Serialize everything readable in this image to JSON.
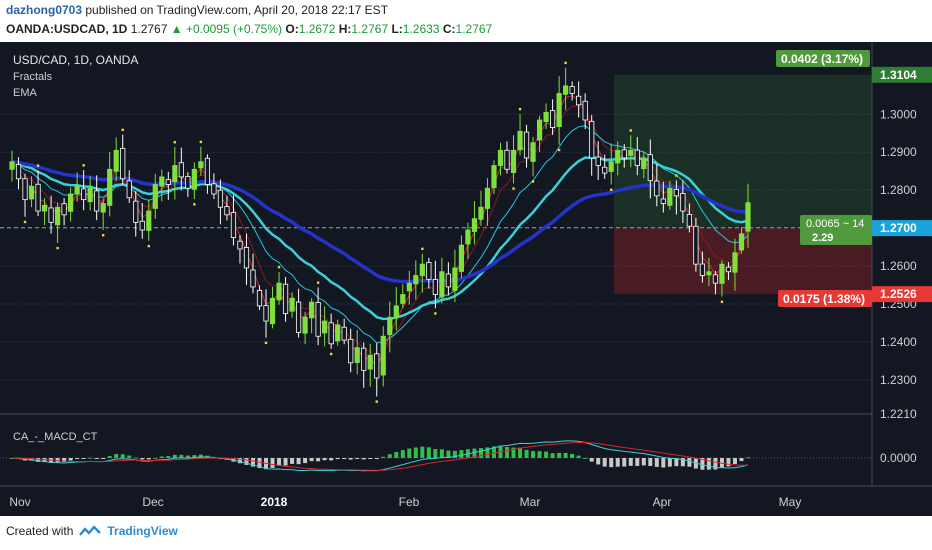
{
  "header": {
    "author": "dazhong0703",
    "published": "published on TradingView.com, April 20, 2018 22:17 EST",
    "symbol": "OANDA:USDCAD, 1D",
    "last": "1.2767",
    "change": "▲ +0.0095 (+0.75%)",
    "o_label": "O:",
    "o": "1.2672",
    "h_label": "H:",
    "h": "1.2767",
    "l_label": "L:",
    "l": "1.2633",
    "c_label": "C:",
    "c": "1.2767"
  },
  "legend": {
    "title": "USD/CAD, 1D, OANDA",
    "ind1": "Fractals",
    "ind2": "EMA",
    "macd": "CA_-_MACD_CT"
  },
  "footer": {
    "created": "Created with",
    "brand": "TradingView"
  },
  "colors": {
    "bg": "#131722",
    "bull": "#7fe03c",
    "bear": "#ffffff",
    "ema_red": "#d62728",
    "ema_dark": "#8b1a1a",
    "ema_cyan_thin": "#26c6da",
    "ema_cyan": "#3ad1d8",
    "ema_blue": "#2433c9",
    "fractal": "#f5d33a",
    "profit": "#2e7d32",
    "loss": "#c62828"
  },
  "chart_data": {
    "type": "candlestick",
    "title": "USD/CAD, 1D, OANDA",
    "x_ticks": [
      "Nov",
      "Dec",
      "2018",
      "Feb",
      "Mar",
      "Apr",
      "May"
    ],
    "y_ticks": [
      "1.3000",
      "1.2900",
      "1.2800",
      "1.2600",
      "1.2500",
      "1.2400",
      "1.2300",
      "1.2210"
    ],
    "ylim": [
      1.221,
      1.318
    ],
    "price_labels": [
      {
        "text": "1.3104",
        "value": 1.3104,
        "color": "#2e7d32"
      },
      {
        "text": "1.2701",
        "value": 1.2701,
        "color": "#ffffff"
      },
      {
        "text": "1.2700",
        "value": 1.27,
        "color": "#1aa3d9"
      },
      {
        "text": "1.2526",
        "value": 1.2526,
        "color": "#e53935"
      }
    ],
    "position": {
      "entry": 1.2701,
      "target": 1.3104,
      "stop": 1.2526,
      "profit_label": "0.0402 (3.17%)",
      "loss_label": "0.0175 (1.38%)",
      "entry_label": "0.0065 ~ 14",
      "rr_label": "2.29"
    },
    "macd": {
      "zero_label": "0.0000"
    },
    "closes": [
      1.2875,
      1.283,
      1.2775,
      1.281,
      1.2745,
      1.276,
      1.2715,
      1.2755,
      1.2735,
      1.279,
      1.281,
      1.2775,
      1.2805,
      1.2745,
      1.2765,
      1.2855,
      1.2905,
      1.283,
      1.278,
      1.2715,
      1.2695,
      1.2745,
      1.2815,
      1.2835,
      1.2815,
      1.2865,
      1.2835,
      1.2805,
      1.2855,
      1.2875,
      1.2815,
      1.279,
      1.2755,
      1.2735,
      1.2675,
      1.2645,
      1.2595,
      1.2545,
      1.2495,
      1.2455,
      1.2515,
      1.2555,
      1.2475,
      1.2515,
      1.2425,
      1.2465,
      1.2505,
      1.2415,
      1.2455,
      1.2395,
      1.2445,
      1.2405,
      1.2345,
      1.2385,
      1.2325,
      1.2365,
      1.2305,
      1.2415,
      1.2465,
      1.2495,
      1.2525,
      1.2555,
      1.2575,
      1.2605,
      1.2565,
      1.2525,
      1.2585,
      1.2545,
      1.2595,
      1.2655,
      1.2695,
      1.2725,
      1.2755,
      1.2805,
      1.2865,
      1.2905,
      1.2855,
      1.2905,
      1.2955,
      1.2885,
      1.2925,
      1.2985,
      1.3005,
      1.2965,
      1.3055,
      1.3075,
      1.3055,
      1.3025,
      1.2985,
      1.2885,
      1.2865,
      1.2845,
      1.2875,
      1.2905,
      1.2885,
      1.2905,
      1.2865,
      1.2885,
      1.2825,
      1.2785,
      1.2765,
      1.2805,
      1.2785,
      1.2745,
      1.2705,
      1.2605,
      1.2575,
      1.2585,
      1.2555,
      1.2605,
      1.2585,
      1.2635,
      1.2685,
      1.2767
    ]
  }
}
